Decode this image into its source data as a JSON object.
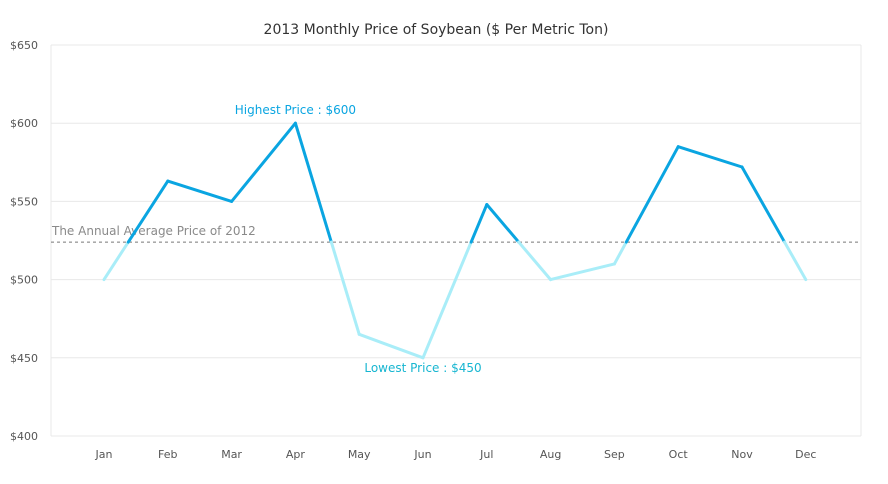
{
  "chart_data": {
    "type": "line",
    "title": "2013 Monthly Price of Soybean ($ Per Metric Ton)",
    "categories": [
      "Jan",
      "Feb",
      "Mar",
      "Apr",
      "May",
      "Jun",
      "Jul",
      "Aug",
      "Sep",
      "Oct",
      "Nov",
      "Dec"
    ],
    "series": [
      {
        "values": [
          500,
          563,
          550,
          600,
          465,
          450,
          548,
          500,
          510,
          585,
          572,
          500
        ]
      }
    ],
    "ylim": [
      400,
      650
    ],
    "yticks": [
      400,
      450,
      500,
      550,
      600,
      650
    ],
    "ytick_labels": [
      "$400",
      "$450",
      "$500",
      "$550",
      "$600",
      "$650"
    ],
    "reference_line": {
      "label": "The Annual Average Price of 2012",
      "value": 524
    },
    "annotations": [
      {
        "text": "Highest Price : $600",
        "category": "Apr",
        "value": 600,
        "position": "above"
      },
      {
        "text": "Lowest Price : $450",
        "category": "Jun",
        "value": 450,
        "position": "below"
      }
    ],
    "colors": {
      "above_reference": "#0aa5e1",
      "below_reference": "#a9edf8",
      "reference_line": "#777777",
      "grid": "#e8e8e8",
      "highest_annotation": "#0aa5e1",
      "lowest_annotation": "#17b6d1"
    },
    "grid": true,
    "legend": "none"
  }
}
